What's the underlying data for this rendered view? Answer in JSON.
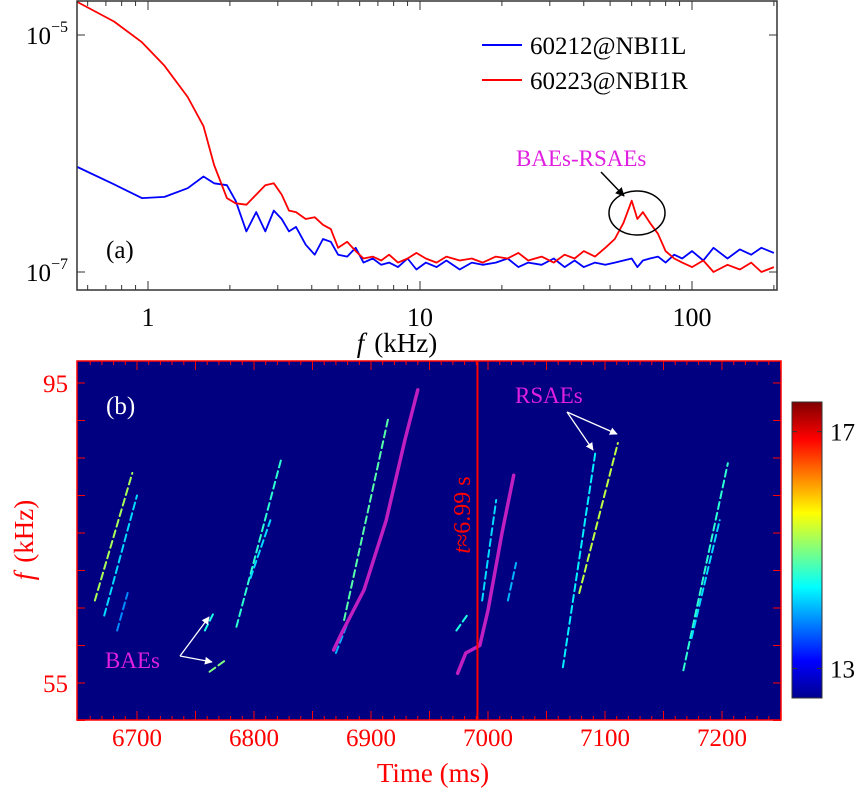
{
  "chart_data": [
    {
      "panel_label": "(a)",
      "type": "line",
      "xlabel_italic": "f",
      "xlabel_unit": "(kHz)",
      "xscale": "log",
      "yscale": "log",
      "xlim": [
        0.55,
        205
      ],
      "ylim": [
        7e-08,
        1.94e-05
      ],
      "xticks": [
        {
          "value": 1,
          "label": "1"
        },
        {
          "value": 10,
          "label": "10"
        },
        {
          "value": 100,
          "label": "100"
        }
      ],
      "yticks": [
        {
          "value": 1e-05,
          "base": "10",
          "exp": "−5"
        },
        {
          "value": 1e-07,
          "base": "10",
          "exp": "−7"
        }
      ],
      "legend_position": "top-right",
      "x": [
        0.55,
        0.75,
        0.95,
        1.15,
        1.4,
        1.6,
        1.75,
        1.95,
        2.1,
        2.3,
        2.5,
        2.7,
        2.9,
        3.1,
        3.3,
        3.5,
        3.8,
        4.1,
        4.4,
        4.7,
        5.0,
        5.4,
        5.8,
        6.2,
        6.7,
        7.2,
        7.7,
        8.3,
        9,
        9.7,
        10.5,
        11.5,
        12.5,
        14,
        15.5,
        17,
        19,
        21,
        23,
        25,
        28,
        31,
        34,
        37,
        40,
        44,
        48,
        52,
        56,
        60,
        63,
        66,
        70,
        75,
        80,
        86,
        92,
        100,
        110,
        120,
        135,
        150,
        165,
        180,
        200
      ],
      "series": [
        {
          "name": "60212@NBI1L",
          "color": "#0000ff",
          "values": [
            7.7e-07,
            5.5e-07,
            4.2e-07,
            4.3e-07,
            5.1e-07,
            6.4e-07,
            5.6e-07,
            5.4e-07,
            4e-07,
            2.2e-07,
            3.2e-07,
            2.2e-07,
            3.3e-07,
            2.8e-07,
            2.2e-07,
            2.4e-07,
            1.7e-07,
            1.4e-07,
            1.9e-07,
            1.8e-07,
            1.4e-07,
            1.35e-07,
            1.6e-07,
            1.2e-07,
            1.3e-07,
            1.15e-07,
            1.2e-07,
            1.1e-07,
            1.3e-07,
            1.05e-07,
            1.2e-07,
            1.1e-07,
            1.25e-07,
            1.05e-07,
            1.2e-07,
            1.15e-07,
            1.2e-07,
            1.3e-07,
            1.1e-07,
            1.2e-07,
            1.15e-07,
            1.3e-07,
            1.1e-07,
            1.25e-07,
            1.1e-07,
            1.2e-07,
            1.15e-07,
            1.2e-07,
            1.25e-07,
            1.3e-07,
            1.1e-07,
            1.25e-07,
            1.3e-07,
            1.35e-07,
            1.2e-07,
            1.4e-07,
            1.3e-07,
            1.5e-07,
            1.25e-07,
            1.6e-07,
            1.3e-07,
            1.55e-07,
            1.4e-07,
            1.6e-07,
            1.45e-07
          ]
        },
        {
          "name": "60223@NBI1R",
          "color": "#ff0000",
          "values": [
            1.9e-05,
            1.3e-05,
            8.7e-06,
            5.5e-06,
            3e-06,
            1.7e-06,
            8e-07,
            4.2e-07,
            3.8e-07,
            3.7e-07,
            4.5e-07,
            5.4e-07,
            5.6e-07,
            4.5e-07,
            3.3e-07,
            3.2e-07,
            2.8e-07,
            2.9e-07,
            2.5e-07,
            2.3e-07,
            1.6e-07,
            1.8e-07,
            1.5e-07,
            1.3e-07,
            1.35e-07,
            1.25e-07,
            1.4e-07,
            1.2e-07,
            1.3e-07,
            1.45e-07,
            1.3e-07,
            1.2e-07,
            1.35e-07,
            1.25e-07,
            1.3e-07,
            1.2e-07,
            1.35e-07,
            1.3e-07,
            1.45e-07,
            1.25e-07,
            1.35e-07,
            1.2e-07,
            1.4e-07,
            1.3e-07,
            1.5e-07,
            1.35e-07,
            1.6e-07,
            1.9e-07,
            2.6e-07,
            4e-07,
            2.8e-07,
            3.2e-07,
            2.6e-07,
            2.1e-07,
            1.5e-07,
            1.3e-07,
            1.2e-07,
            1.1e-07,
            1.25e-07,
            1e-07,
            1.15e-07,
            1.05e-07,
            1.2e-07,
            1e-07,
            1.1e-07
          ]
        }
      ],
      "annotation": {
        "text": "BAEs-RSAEs",
        "color": "#e020e0",
        "circled_peak_f": 63,
        "circled_peak_value": 2.6e-07
      }
    },
    {
      "panel_label": "(b)",
      "type": "heatmap",
      "xlabel": "Time (ms)",
      "ylabel_italic": "f",
      "ylabel_unit": "(kHz)",
      "xlim": [
        6649,
        7250
      ],
      "ylim": [
        50,
        97.9
      ],
      "xticks": [
        6700,
        6800,
        6900,
        7000,
        7100,
        7200
      ],
      "yticks": [
        55,
        95
      ],
      "axis_color": "#ff0000",
      "background_level": 12.5,
      "colorbar": {
        "colormap": "jet",
        "range": [
          12.5,
          17.5
        ],
        "ticks": [
          13,
          17
        ]
      },
      "ridges": [
        {
          "t": [
            6664,
            6696
          ],
          "f": [
            66,
            83
          ],
          "level": 15.2
        },
        {
          "t": [
            6672,
            6700
          ],
          "f": [
            64,
            80
          ],
          "level": 14.2
        },
        {
          "t": [
            6683,
            6692
          ],
          "f": [
            62,
            67
          ],
          "level": 13.8
        },
        {
          "t": [
            6785,
            6823
          ],
          "f": [
            62.5,
            84.7
          ],
          "level": 14.6
        },
        {
          "t": [
            6797,
            6814
          ],
          "f": [
            69,
            76.7
          ],
          "level": 14.2
        },
        {
          "t": [
            6758,
            6766
          ],
          "f": [
            62,
            64.5
          ],
          "level": 14.5
        },
        {
          "t": [
            6762,
            6777
          ],
          "f": [
            56.5,
            58.2
          ],
          "level": 15.0
        },
        {
          "t": [
            6877,
            6915
          ],
          "f": [
            63.4,
            90.5
          ],
          "level": 14.8
        },
        {
          "t": [
            6870,
            6880
          ],
          "f": [
            59,
            63
          ],
          "level": 14.0
        },
        {
          "t": [
            6995,
            7007
          ],
          "f": [
            66,
            79.4
          ],
          "level": 14.2
        },
        {
          "t": [
            7017,
            7024
          ],
          "f": [
            66,
            71
          ],
          "level": 14.0
        },
        {
          "t": [
            6973,
            6982
          ],
          "f": [
            62,
            64
          ],
          "level": 14.5
        },
        {
          "t": [
            7064,
            7092
          ],
          "f": [
            57.1,
            86
          ],
          "level": 14.3
        },
        {
          "t": [
            7078,
            7111
          ],
          "f": [
            67,
            87
          ],
          "level": 15.3
        },
        {
          "t": [
            7167,
            7205
          ],
          "f": [
            56.7,
            84.3
          ],
          "level": 14.6
        },
        {
          "t": [
            7174,
            7198
          ],
          "f": [
            61,
            76.7
          ],
          "level": 14.2
        }
      ],
      "fits": [
        {
          "color": "#c020c0",
          "t": [
            6868,
            6875,
            6894,
            6913,
            6929,
            6940
          ],
          "f": [
            59.4,
            61.7,
            67.4,
            76.7,
            87.4,
            94.1
          ]
        },
        {
          "color": "#c020c0",
          "t": [
            6974,
            6981,
            6993,
            7000,
            7012,
            7022
          ],
          "f": [
            56.3,
            59,
            60,
            64.7,
            75,
            82.7
          ]
        }
      ],
      "marker_line": {
        "t": 6991,
        "label_italic": "t",
        "label_rest": "≈6.99 s",
        "color": "#ff0000"
      },
      "annotations": [
        {
          "text": "BAEs",
          "color": "#e020e0"
        },
        {
          "text": "RSAEs",
          "color": "#e020e0"
        }
      ]
    }
  ]
}
